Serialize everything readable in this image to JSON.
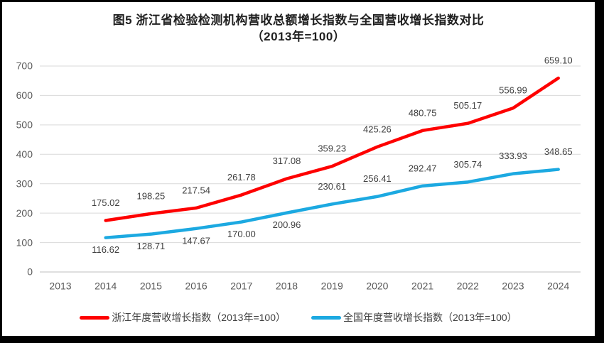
{
  "title": {
    "line1": "图5  浙江省检验检测机构营收总额增长指数与全国营收增长指数对比",
    "line2": "（2013年=100）"
  },
  "colors": {
    "zhejiang_line": "#FE0000",
    "national_line": "#1CA9E1",
    "gridline": "#D9D9D9",
    "axis_line": "#BFBFBF",
    "tick_text": "#595959",
    "label_text": "#404040",
    "title_text": "#1F1F1F",
    "frame_border": "#000000"
  },
  "chart_data": {
    "type": "line",
    "title": "图5 浙江省检验检测机构营收总额增长指数与全国营收增长指数对比（2013年=100）",
    "x_tick_labels": [
      "2013",
      "2014",
      "2015",
      "2016",
      "2017",
      "2018",
      "2019",
      "2020",
      "2021",
      "2022",
      "2023",
      "2024"
    ],
    "data_years": [
      2014,
      2015,
      2016,
      2017,
      2018,
      2019,
      2020,
      2021,
      2022,
      2023,
      2024
    ],
    "y_ticks": [
      0,
      100,
      200,
      300,
      400,
      500,
      600,
      700
    ],
    "ylim": [
      0,
      700
    ],
    "grid": "horizontal",
    "legend_position": "bottom",
    "series": [
      {
        "name": "浙江年度营收增长指数（2013年=100）",
        "color": "#FE0000",
        "values": [
          175.02,
          198.25,
          217.54,
          261.78,
          317.08,
          359.23,
          425.26,
          480.75,
          505.17,
          556.99,
          659.1
        ],
        "labels": [
          "175.02",
          "198.25",
          "217.54",
          "261.78",
          "317.08",
          "359.23",
          "425.26",
          "480.75",
          "505.17",
          "556.99",
          "659.10"
        ],
        "label_side": "above"
      },
      {
        "name": "全国年度营收增长指数（2013年=100）",
        "color": "#1CA9E1",
        "values": [
          116.62,
          128.71,
          147.67,
          170.0,
          200.96,
          230.61,
          256.41,
          292.47,
          305.74,
          333.93,
          348.65
        ],
        "labels": [
          "116.62",
          "128.71",
          "147.67",
          "170.00",
          "200.96",
          "230.61",
          "256.41",
          "292.47",
          "305.74",
          "333.93",
          "348.65"
        ],
        "label_side": [
          "below",
          "below",
          "below",
          "below",
          "below",
          "above",
          "above",
          "above",
          "above",
          "above",
          "above"
        ]
      }
    ]
  }
}
